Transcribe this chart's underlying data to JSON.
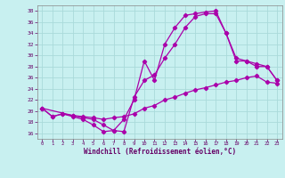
{
  "title": "",
  "xlabel": "Windchill (Refroidissement éolien,°C)",
  "background_color": "#c8f0f0",
  "grid_color": "#aadada",
  "line_color": "#aa00aa",
  "xlim": [
    -0.5,
    23.5
  ],
  "ylim": [
    15,
    39
  ],
  "xticks": [
    0,
    1,
    2,
    3,
    4,
    5,
    6,
    7,
    8,
    9,
    10,
    11,
    12,
    13,
    14,
    15,
    16,
    17,
    18,
    19,
    20,
    21,
    22,
    23
  ],
  "yticks": [
    16,
    18,
    20,
    22,
    24,
    26,
    28,
    30,
    32,
    34,
    36,
    38
  ],
  "curve1_x": [
    0,
    1,
    2,
    3,
    4,
    5,
    6,
    7,
    8,
    9,
    10,
    11,
    12,
    13,
    14,
    15,
    16,
    17,
    18,
    19,
    20,
    21,
    22,
    23
  ],
  "curve1_y": [
    20.5,
    19.0,
    19.5,
    19.0,
    18.5,
    17.5,
    16.3,
    16.5,
    18.5,
    22.0,
    29.0,
    25.5,
    32.0,
    35.0,
    37.2,
    37.5,
    37.8,
    38.0,
    34.0,
    29.0,
    29.0,
    28.0,
    28.0,
    25.5
  ],
  "curve2_x": [
    0,
    1,
    2,
    3,
    4,
    5,
    6,
    7,
    8,
    9,
    10,
    11,
    12,
    13,
    14,
    15,
    16,
    17,
    18,
    19,
    20,
    21,
    22,
    23
  ],
  "curve2_y": [
    20.5,
    19.0,
    19.5,
    19.2,
    19.0,
    18.8,
    18.5,
    18.8,
    19.0,
    19.5,
    20.5,
    21.0,
    22.0,
    22.5,
    23.2,
    23.8,
    24.2,
    24.7,
    25.2,
    25.5,
    26.0,
    26.3,
    25.2,
    25.0
  ],
  "curve3_x": [
    0,
    3,
    4,
    5,
    6,
    7,
    8,
    9,
    10,
    11,
    12,
    13,
    14,
    15,
    16,
    17,
    18,
    19,
    20,
    21,
    22,
    23
  ],
  "curve3_y": [
    20.5,
    19.2,
    18.8,
    18.5,
    17.5,
    16.5,
    16.3,
    22.5,
    25.5,
    26.5,
    29.5,
    32.0,
    35.0,
    37.0,
    37.5,
    37.5,
    34.0,
    29.5,
    29.0,
    28.5,
    28.0,
    25.5
  ]
}
